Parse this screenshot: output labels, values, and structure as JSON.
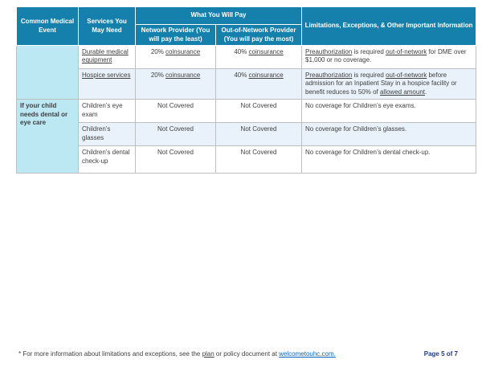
{
  "colors": {
    "header_bg": "#1580AC",
    "event_col_bg": "#BCE8F4",
    "stripe_bg": "#E9F2FA",
    "link_blue": "#0563C1",
    "page_label_color": "#1F3C88"
  },
  "table": {
    "headers": {
      "col_event": "Common Medical Event",
      "col_services": "Services You May Need",
      "col_pay_group": "What You Will Pay",
      "col_network": "Network Provider (You will pay the least)",
      "col_oon": "Out-of-Network Provider (You will pay the most)",
      "col_limitations": "Limitations, Exceptions, & Other Important Information"
    },
    "event_groups": [
      {
        "label": ""
      },
      {
        "label": "If your child needs dental or eye care"
      }
    ],
    "rows": [
      {
        "service": [
          {
            "t": "Durable medical equipment",
            "u": true
          }
        ],
        "network": [
          {
            "t": "20% "
          },
          {
            "t": "coinsurance",
            "u": true
          }
        ],
        "oon": [
          {
            "t": "40% "
          },
          {
            "t": "coinsurance",
            "u": true
          }
        ],
        "limitation": [
          {
            "t": "Preauthorization",
            "u": true
          },
          {
            "t": " is required "
          },
          {
            "t": "out-of-network",
            "u": true
          },
          {
            "t": " for DME over $1,000 or no coverage."
          }
        ]
      },
      {
        "service": [
          {
            "t": "Hospice services",
            "u": true
          }
        ],
        "network": [
          {
            "t": "20% "
          },
          {
            "t": "coinsurance",
            "u": true
          }
        ],
        "oon": [
          {
            "t": "40% "
          },
          {
            "t": "coinsurance",
            "u": true
          }
        ],
        "limitation": [
          {
            "t": "Preauthorization",
            "u": true
          },
          {
            "t": " is required "
          },
          {
            "t": "out-of-network",
            "u": true
          },
          {
            "t": " before admission for an Inpatient Stay in a hospice facility or benefit reduces to 50% of "
          },
          {
            "t": "allowed amount",
            "u": true
          },
          {
            "t": "."
          }
        ]
      },
      {
        "service": [
          {
            "t": "Children’s eye exam"
          }
        ],
        "network": [
          {
            "t": "Not Covered"
          }
        ],
        "oon": [
          {
            "t": "Not Covered"
          }
        ],
        "limitation": [
          {
            "t": "No coverage for Children’s eye exams."
          }
        ]
      },
      {
        "service": [
          {
            "t": "Children’s glasses"
          }
        ],
        "network": [
          {
            "t": "Not Covered"
          }
        ],
        "oon": [
          {
            "t": "Not Covered"
          }
        ],
        "limitation": [
          {
            "t": "No coverage for Children’s glasses."
          }
        ]
      },
      {
        "service": [
          {
            "t": "Children’s dental check-up"
          }
        ],
        "network": [
          {
            "t": "Not Covered"
          }
        ],
        "oon": [
          {
            "t": "Not Covered"
          }
        ],
        "limitation": [
          {
            "t": "No coverage for Children’s dental check-up."
          }
        ]
      }
    ]
  },
  "footer": {
    "note_segments": [
      {
        "t": "* For more information about limitations and exceptions, see the "
      },
      {
        "t": "plan",
        "u": true
      },
      {
        "t": " or policy document at "
      }
    ],
    "link": "welcometouhc.com.",
    "page_label": "Page 5 of 7"
  }
}
